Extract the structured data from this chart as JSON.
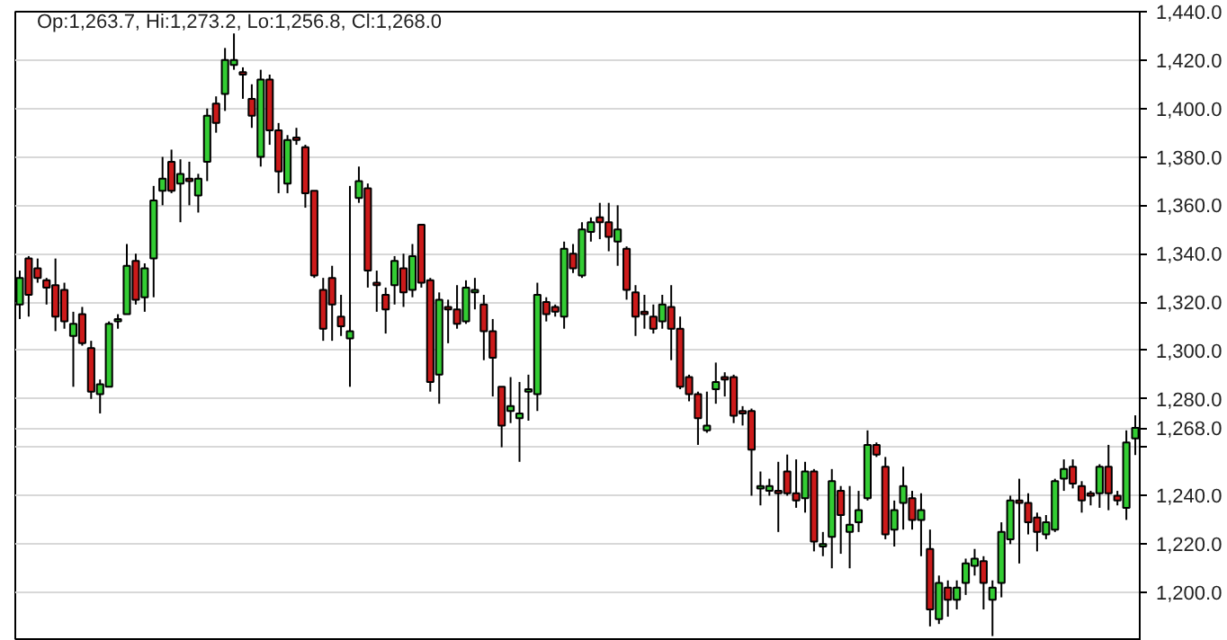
{
  "chart_data": {
    "type": "candlestick",
    "categories": [
      null,
      null,
      null,
      null,
      null,
      null,
      null,
      null,
      null,
      null,
      null,
      null,
      null,
      null,
      null,
      null,
      null,
      null,
      null,
      null,
      null,
      null,
      null,
      null,
      null,
      null,
      null,
      null,
      null,
      null,
      null,
      null,
      null,
      null,
      null,
      null,
      null,
      null,
      null,
      null,
      null,
      null,
      null,
      null,
      null,
      null,
      null,
      null,
      null,
      null,
      null,
      null,
      null,
      null,
      null,
      null,
      null,
      null,
      null,
      null,
      null,
      null,
      null,
      null,
      null,
      null,
      null,
      null,
      null,
      null,
      null,
      null,
      null,
      null,
      null,
      null,
      null,
      null,
      null,
      null,
      null,
      null,
      null,
      null,
      null,
      null,
      null,
      null,
      null,
      null,
      null,
      null,
      null,
      null,
      null,
      null,
      null,
      null,
      null,
      null,
      null,
      null,
      null,
      null,
      null,
      null,
      null,
      null,
      null,
      null,
      null,
      null,
      null,
      null,
      null,
      null,
      null,
      null,
      null,
      null,
      null,
      null,
      null,
      null,
      null,
      null
    ],
    "ohlc": [
      [
        1319,
        1333,
        1313,
        1330
      ],
      [
        1338,
        1339,
        1314,
        1323
      ],
      [
        1334,
        1338,
        1328,
        1330
      ],
      [
        1329,
        1330,
        1319,
        1326
      ],
      [
        1327,
        1338,
        1308,
        1314
      ],
      [
        1325,
        1328,
        1309,
        1312
      ],
      [
        1306,
        1316,
        1285,
        1311
      ],
      [
        1315,
        1318,
        1302,
        1303
      ],
      [
        1301,
        1304,
        1280,
        1283
      ],
      [
        1282,
        1288,
        1274,
        1286
      ],
      [
        1285,
        1312,
        1285,
        1311
      ],
      [
        1312,
        1315,
        1309,
        1313
      ],
      [
        1315,
        1344,
        1315,
        1335
      ],
      [
        1337,
        1340,
        1319,
        1321
      ],
      [
        1322,
        1336,
        1316,
        1334
      ],
      [
        1338,
        1368,
        1322,
        1362
      ],
      [
        1366,
        1380,
        1360,
        1371
      ],
      [
        1378,
        1383,
        1365,
        1366
      ],
      [
        1369,
        1379,
        1353,
        1373
      ],
      [
        1371,
        1378,
        1360,
        1370
      ],
      [
        1364,
        1373,
        1357,
        1371
      ],
      [
        1378,
        1400,
        1370,
        1397
      ],
      [
        1402,
        1405,
        1390,
        1394
      ],
      [
        1406,
        1425,
        1399,
        1420
      ],
      [
        1418,
        1431,
        1416,
        1420
      ],
      [
        1415,
        1417,
        1404,
        1414
      ],
      [
        1404,
        1410,
        1392,
        1397
      ],
      [
        1380,
        1416,
        1376,
        1412
      ],
      [
        1412,
        1414,
        1385,
        1391
      ],
      [
        1391,
        1394,
        1365,
        1374
      ],
      [
        1369,
        1389,
        1365,
        1387
      ],
      [
        1388,
        1392,
        1385,
        1387
      ],
      [
        1384,
        1385,
        1359,
        1365
      ],
      [
        1366,
        1366,
        1330,
        1331
      ],
      [
        1325,
        1330,
        1304,
        1309
      ],
      [
        1330,
        1335,
        1304,
        1319
      ],
      [
        1314,
        1323,
        1306,
        1310
      ],
      [
        1305,
        1368,
        1285,
        1308
      ],
      [
        1363,
        1376,
        1361,
        1370
      ],
      [
        1367,
        1369,
        1326,
        1333
      ],
      [
        1328,
        1333,
        1316,
        1327
      ],
      [
        1323,
        1326,
        1307,
        1317
      ],
      [
        1327,
        1339,
        1319,
        1337
      ],
      [
        1334,
        1340,
        1318,
        1324
      ],
      [
        1325,
        1344,
        1322,
        1339
      ],
      [
        1352,
        1352,
        1326,
        1328
      ],
      [
        1329,
        1330,
        1283,
        1287
      ],
      [
        1290,
        1324,
        1278,
        1321
      ],
      [
        1318,
        1321,
        1303,
        1317
      ],
      [
        1317,
        1327,
        1309,
        1311
      ],
      [
        1312,
        1329,
        1311,
        1326
      ],
      [
        1324,
        1330,
        1317,
        1325
      ],
      [
        1319,
        1323,
        1296,
        1308
      ],
      [
        1308,
        1313,
        1281,
        1297
      ],
      [
        1285,
        1285,
        1260,
        1269
      ],
      [
        1275,
        1289,
        1270,
        1277
      ],
      [
        1272,
        1287,
        1254,
        1274
      ],
      [
        1283,
        1290,
        1271,
        1284
      ],
      [
        1282,
        1328,
        1275,
        1323
      ],
      [
        1320,
        1322,
        1312,
        1315
      ],
      [
        1318,
        1319,
        1314,
        1316
      ],
      [
        1314,
        1345,
        1309,
        1342
      ],
      [
        1340,
        1344,
        1332,
        1334
      ],
      [
        1331,
        1353,
        1330,
        1350
      ],
      [
        1349,
        1355,
        1345,
        1353
      ],
      [
        1355,
        1361,
        1346,
        1353
      ],
      [
        1353,
        1361,
        1341,
        1347
      ],
      [
        1345,
        1360,
        1335,
        1350
      ],
      [
        1342,
        1343,
        1321,
        1325
      ],
      [
        1324,
        1327,
        1306,
        1314
      ],
      [
        1316,
        1323,
        1309,
        1315
      ],
      [
        1314,
        1319,
        1307,
        1309
      ],
      [
        1312,
        1323,
        1309,
        1319
      ],
      [
        1318,
        1327,
        1296,
        1309
      ],
      [
        1309,
        1314,
        1284,
        1285
      ],
      [
        1289,
        1290,
        1279,
        1282
      ],
      [
        1282,
        1283,
        1261,
        1272
      ],
      [
        1267,
        1283,
        1266,
        1269
      ],
      [
        1284,
        1295,
        1278,
        1287
      ],
      [
        1289,
        1291,
        1281,
        1288
      ],
      [
        1289,
        1290,
        1270,
        1273
      ],
      [
        1275,
        1277,
        1269,
        1274
      ],
      [
        1275,
        1276,
        1240,
        1259
      ],
      [
        1243,
        1250,
        1236,
        1244
      ],
      [
        1242,
        1247,
        1240,
        1244
      ],
      [
        1242,
        1254,
        1225,
        1241
      ],
      [
        1250,
        1257,
        1240,
        1241
      ],
      [
        1241,
        1255,
        1235,
        1238
      ],
      [
        1239,
        1254,
        1233,
        1250
      ],
      [
        1250,
        1251,
        1217,
        1221
      ],
      [
        1219,
        1225,
        1215,
        1220
      ],
      [
        1223,
        1251,
        1210,
        1246
      ],
      [
        1242,
        1244,
        1216,
        1232
      ],
      [
        1225,
        1244,
        1210,
        1228
      ],
      [
        1229,
        1242,
        1225,
        1234
      ],
      [
        1239,
        1267,
        1238,
        1261
      ],
      [
        1261,
        1262,
        1256,
        1257
      ],
      [
        1252,
        1256,
        1222,
        1224
      ],
      [
        1226,
        1238,
        1219,
        1234
      ],
      [
        1237,
        1252,
        1226,
        1244
      ],
      [
        1239,
        1242,
        1226,
        1230
      ],
      [
        1230,
        1241,
        1215,
        1234
      ],
      [
        1218,
        1226,
        1186,
        1193
      ],
      [
        1189,
        1207,
        1187,
        1204
      ],
      [
        1202,
        1205,
        1190,
        1197
      ],
      [
        1197,
        1205,
        1193,
        1202
      ],
      [
        1204,
        1214,
        1199,
        1212
      ],
      [
        1211,
        1218,
        1207,
        1214
      ],
      [
        1213,
        1215,
        1193,
        1204
      ],
      [
        1197,
        1205,
        1182,
        1202
      ],
      [
        1204,
        1229,
        1198,
        1225
      ],
      [
        1222,
        1240,
        1220,
        1238
      ],
      [
        1238,
        1247,
        1212,
        1237
      ],
      [
        1237,
        1241,
        1224,
        1229
      ],
      [
        1231,
        1233,
        1217,
        1225
      ],
      [
        1224,
        1232,
        1222,
        1229
      ],
      [
        1226,
        1247,
        1225,
        1246
      ],
      [
        1247,
        1255,
        1242,
        1251
      ],
      [
        1252,
        1255,
        1243,
        1245
      ],
      [
        1244,
        1246,
        1233,
        1238
      ],
      [
        1241,
        1242,
        1236,
        1240
      ],
      [
        1241,
        1253,
        1235,
        1252
      ],
      [
        1252,
        1261,
        1234,
        1241
      ],
      [
        1240,
        1242,
        1236,
        1238
      ],
      [
        1235,
        1267,
        1230,
        1262
      ],
      [
        1263.7,
        1273.2,
        1256.8,
        1268.0
      ]
    ],
    "colors": [
      "#33cc33",
      "#cc1a1a",
      "#cc1a1a",
      "#cc1a1a",
      "#cc1a1a",
      "#cc1a1a",
      "#33cc33",
      "#cc1a1a",
      "#cc1a1a",
      "#33cc33",
      "#33cc33",
      "#33cc33",
      "#33cc33",
      "#cc1a1a",
      "#33cc33",
      "#33cc33",
      "#33cc33",
      "#cc1a1a",
      "#33cc33",
      "#cc1a1a",
      "#33cc33",
      "#33cc33",
      "#cc1a1a",
      "#33cc33",
      "#33cc33",
      "#cc1a1a",
      "#cc1a1a",
      "#33cc33",
      "#cc1a1a",
      "#cc1a1a",
      "#33cc33",
      "#cc1a1a",
      "#cc1a1a",
      "#cc1a1a",
      "#cc1a1a",
      "#cc1a1a",
      "#cc1a1a",
      "#33cc33",
      "#33cc33",
      "#cc1a1a",
      "#cc1a1a",
      "#cc1a1a",
      "#33cc33",
      "#cc1a1a",
      "#33cc33",
      "#cc1a1a",
      "#cc1a1a",
      "#33cc33",
      "#cc1a1a",
      "#cc1a1a",
      "#33cc33",
      "#33cc33",
      "#cc1a1a",
      "#cc1a1a",
      "#cc1a1a",
      "#33cc33",
      "#33cc33",
      "#33cc33",
      "#33cc33",
      "#cc1a1a",
      "#cc1a1a",
      "#33cc33",
      "#cc1a1a",
      "#33cc33",
      "#33cc33",
      "#cc1a1a",
      "#cc1a1a",
      "#33cc33",
      "#cc1a1a",
      "#cc1a1a",
      "#cc1a1a",
      "#cc1a1a",
      "#33cc33",
      "#cc1a1a",
      "#cc1a1a",
      "#cc1a1a",
      "#cc1a1a",
      "#33cc33",
      "#33cc33",
      "#cc1a1a",
      "#cc1a1a",
      "#cc1a1a",
      "#cc1a1a",
      "#33cc33",
      "#33cc33",
      "#cc1a1a",
      "#cc1a1a",
      "#cc1a1a",
      "#33cc33",
      "#cc1a1a",
      "#33cc33",
      "#33cc33",
      "#cc1a1a",
      "#33cc33",
      "#33cc33",
      "#33cc33",
      "#cc1a1a",
      "#cc1a1a",
      "#33cc33",
      "#33cc33",
      "#cc1a1a",
      "#33cc33",
      "#cc1a1a",
      "#33cc33",
      "#cc1a1a",
      "#33cc33",
      "#33cc33",
      "#33cc33",
      "#cc1a1a",
      "#33cc33",
      "#33cc33",
      "#33cc33",
      "#cc1a1a",
      "#cc1a1a",
      "#cc1a1a",
      "#33cc33",
      "#33cc33",
      "#33cc33",
      "#cc1a1a",
      "#cc1a1a",
      "#cc1a1a",
      "#33cc33",
      "#cc1a1a",
      "#cc1a1a",
      "#33cc33",
      "#33cc33"
    ],
    "ylim": [
      1180,
      1440
    ],
    "yticks": [
      {
        "value": 1200,
        "label": "1,200.0"
      },
      {
        "value": 1220,
        "label": "1,220.0"
      },
      {
        "value": 1240,
        "label": "1,240.0"
      },
      {
        "value": 1260,
        "label": null
      },
      {
        "value": 1268,
        "label": "1,268.0"
      },
      {
        "value": 1280,
        "label": "1,280.0"
      },
      {
        "value": 1300,
        "label": "1,300.0"
      },
      {
        "value": 1320,
        "label": "1,320.0"
      },
      {
        "value": 1340,
        "label": "1,340.0"
      },
      {
        "value": 1360,
        "label": "1,360.0"
      },
      {
        "value": 1380,
        "label": "1,380.0"
      },
      {
        "value": 1400,
        "label": "1,400.0"
      },
      {
        "value": 1420,
        "label": "1,420.0"
      },
      {
        "value": 1440,
        "label": "1,440.0"
      }
    ],
    "grid": "y",
    "annotations": [
      "Op:1,263.7, Hi:1,273.2, Lo:1,256.8, Cl:1,268.0"
    ]
  }
}
